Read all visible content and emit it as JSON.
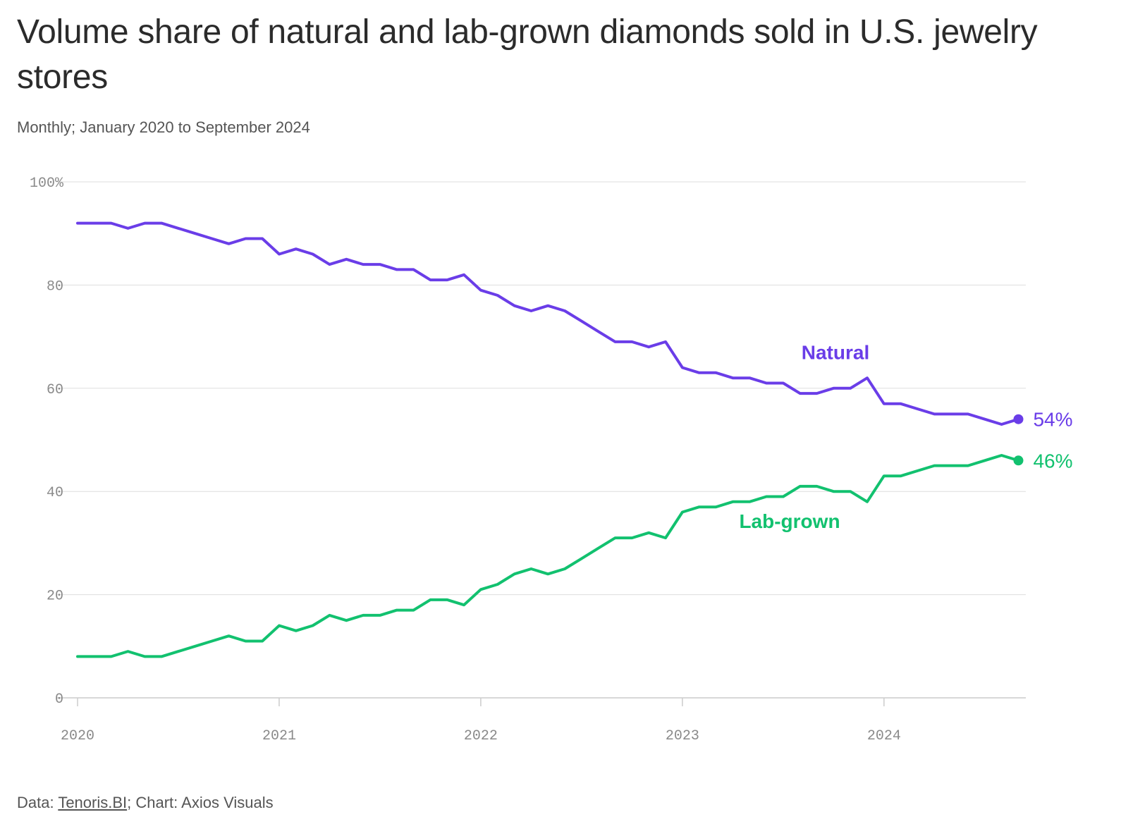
{
  "header": {
    "title": "Volume share of natural and lab-grown diamonds sold in U.S. jewelry stores",
    "subtitle": "Monthly; January 2020 to September 2024"
  },
  "footer": {
    "data_prefix": "Data: ",
    "source_link": "Tenoris.BI",
    "chart_credit": "; Chart: Axios Visuals"
  },
  "colors": {
    "natural": "#6a3de8",
    "lab_grown": "#12c16f",
    "grid": "#dddddd",
    "axis": "#cccccc"
  },
  "chart_data": {
    "type": "line",
    "title": "Volume share of natural and lab-grown diamonds sold in U.S. jewelry stores",
    "subtitle": "Monthly; January 2020 to September 2024",
    "xlabel": "",
    "ylabel": "",
    "x_start": "2020-01",
    "x_end": "2024-09",
    "x_ticks": [
      "2020",
      "2021",
      "2022",
      "2023",
      "2024"
    ],
    "y_ticks": [
      "100%",
      "80",
      "60",
      "40",
      "20",
      "0"
    ],
    "ylim": [
      0,
      100
    ],
    "grid": true,
    "legend": "direct labels on lines",
    "x": [
      "2020-01",
      "2020-02",
      "2020-03",
      "2020-04",
      "2020-05",
      "2020-06",
      "2020-07",
      "2020-08",
      "2020-09",
      "2020-10",
      "2020-11",
      "2020-12",
      "2021-01",
      "2021-02",
      "2021-03",
      "2021-04",
      "2021-05",
      "2021-06",
      "2021-07",
      "2021-08",
      "2021-09",
      "2021-10",
      "2021-11",
      "2021-12",
      "2022-01",
      "2022-02",
      "2022-03",
      "2022-04",
      "2022-05",
      "2022-06",
      "2022-07",
      "2022-08",
      "2022-09",
      "2022-10",
      "2022-11",
      "2022-12",
      "2023-01",
      "2023-02",
      "2023-03",
      "2023-04",
      "2023-05",
      "2023-06",
      "2023-07",
      "2023-08",
      "2023-09",
      "2023-10",
      "2023-11",
      "2023-12",
      "2024-01",
      "2024-02",
      "2024-03",
      "2024-04",
      "2024-05",
      "2024-06",
      "2024-07",
      "2024-08",
      "2024-09"
    ],
    "series": [
      {
        "name": "Natural",
        "end_label": "54%",
        "values": [
          92,
          92,
          92,
          91,
          92,
          92,
          91,
          90,
          89,
          88,
          89,
          89,
          86,
          87,
          86,
          84,
          85,
          84,
          84,
          83,
          83,
          81,
          81,
          82,
          79,
          78,
          76,
          75,
          76,
          75,
          73,
          71,
          69,
          69,
          68,
          69,
          64,
          63,
          63,
          62,
          62,
          61,
          61,
          59,
          59,
          60,
          60,
          62,
          57,
          57,
          56,
          55,
          55,
          55,
          54,
          53,
          54
        ]
      },
      {
        "name": "Lab-grown",
        "end_label": "46%",
        "values": [
          8,
          8,
          8,
          9,
          8,
          8,
          9,
          10,
          11,
          12,
          11,
          11,
          14,
          13,
          14,
          16,
          15,
          16,
          16,
          17,
          17,
          19,
          19,
          18,
          21,
          22,
          24,
          25,
          24,
          25,
          27,
          29,
          31,
          31,
          32,
          31,
          36,
          37,
          37,
          38,
          38,
          39,
          39,
          41,
          41,
          40,
          40,
          38,
          43,
          43,
          44,
          45,
          45,
          45,
          46,
          47,
          46
        ]
      }
    ]
  }
}
